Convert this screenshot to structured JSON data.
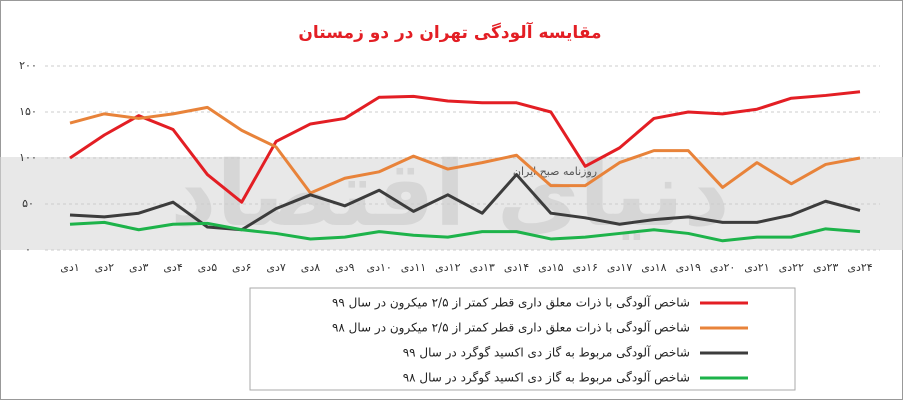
{
  "chart_data": {
    "type": "line",
    "title": "مقایسه آلودگی تهران در دو زمستان",
    "watermark": "دنیای اقتصاد",
    "watermark_subtitle": "روزنامه صبح ایران",
    "categories": [
      "۱دی",
      "۲دی",
      "۳دی",
      "۴دی",
      "۵دی",
      "۶دی",
      "۷دی",
      "۸دی",
      "۹دی",
      "۱۰دی",
      "۱۱دی",
      "۱۲دی",
      "۱۳دی",
      "۱۴دی",
      "۱۵دی",
      "۱۶دی",
      "۱۷دی",
      "۱۸دی",
      "۱۹دی",
      "۲۰دی",
      "۲۱دی",
      "۲۲دی",
      "۲۳دی",
      "۲۴دی"
    ],
    "ylim": [
      0,
      200
    ],
    "yticks": [
      {
        "value": 0,
        "label": "۰"
      },
      {
        "value": 50,
        "label": "۵۰"
      },
      {
        "value": 100,
        "label": "۱۰۰"
      },
      {
        "value": 150,
        "label": "۱۵۰"
      },
      {
        "value": 200,
        "label": "۲۰۰"
      }
    ],
    "grid": true,
    "series": [
      {
        "name": "شاخص آلودگی با ذرات معلق داری قطر کمتر از ۲/۵ میکرون در سال ۹۹",
        "color": "#e31e24",
        "values": [
          100,
          125,
          146,
          131,
          82,
          52,
          118,
          137,
          143,
          166,
          167,
          162,
          160,
          160,
          150,
          91,
          111,
          143,
          150,
          148,
          153,
          165,
          168,
          172
        ]
      },
      {
        "name": "شاخص آلودگی با ذرات معلق داری قطر کمتر از ۲/۵ میکرون در سال ۹۸",
        "color": "#e8833a",
        "values": [
          138,
          148,
          143,
          148,
          155,
          130,
          112,
          62,
          78,
          85,
          102,
          88,
          95,
          103,
          70,
          70,
          95,
          108,
          108,
          68,
          95,
          72,
          93,
          100
        ]
      },
      {
        "name": "شاخص آلودگی مربوط به گاز دی اکسید گوگرد در سال ۹۹",
        "color": "#3c3c3c",
        "values": [
          38,
          36,
          40,
          52,
          25,
          22,
          45,
          60,
          48,
          65,
          42,
          60,
          40,
          82,
          40,
          35,
          28,
          33,
          36,
          30,
          30,
          38,
          53,
          43
        ]
      },
      {
        "name": "شاخص آلودگی مربوط به گاز دی اکسید گوگرد در سال ۹۸",
        "color": "#1db34a",
        "values": [
          28,
          30,
          22,
          28,
          29,
          22,
          18,
          12,
          14,
          20,
          16,
          14,
          20,
          20,
          12,
          14,
          18,
          22,
          18,
          10,
          14,
          14,
          23,
          20
        ]
      }
    ]
  }
}
